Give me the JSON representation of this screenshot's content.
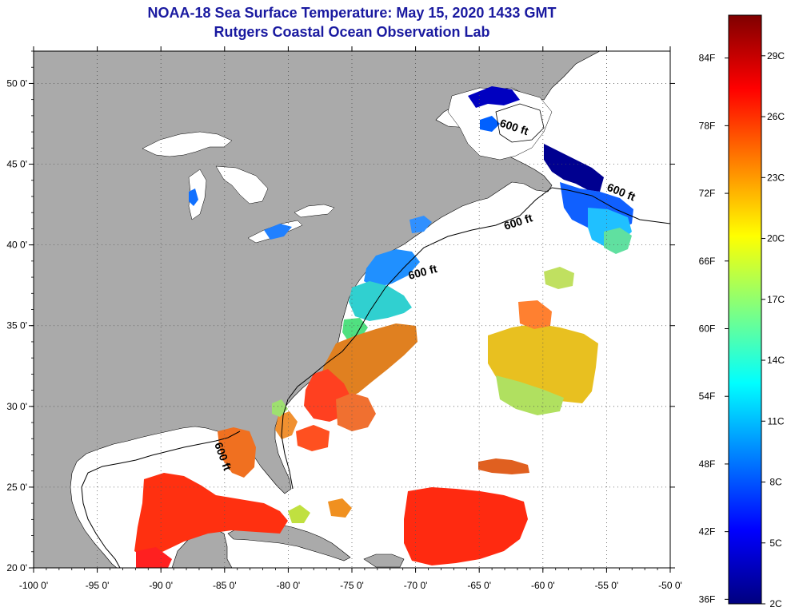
{
  "title_line1": "NOAA-18 Sea Surface Temperature:  May 15, 2020 1433 GMT",
  "title_line2": "Rutgers Coastal Ocean Observation Lab",
  "map": {
    "lon_range": [
      -100,
      -50
    ],
    "lat_range": [
      20,
      52
    ],
    "lat_labels": [
      "50 0'",
      "45 0'",
      "40 0'",
      "35 0'",
      "30 0'",
      "25 0'",
      "20 0'"
    ],
    "lat_values": [
      50,
      45,
      40,
      35,
      30,
      25,
      20
    ],
    "lon_labels": [
      "-100 0'",
      "-95 0'",
      "-90 0'",
      "-85 0'",
      "-80 0'",
      "-75 0'",
      "-70 0'",
      "-65 0'",
      "-60 0'",
      "-55 0'",
      "-50 0'"
    ],
    "lon_values": [
      -100,
      -95,
      -90,
      -85,
      -80,
      -75,
      -70,
      -65,
      -60,
      -55,
      -50
    ],
    "contour_label": "600 ft",
    "colors": {
      "land": "#aaaaaa",
      "water": "#ffffff",
      "grid": "#555555"
    }
  },
  "colorbar": {
    "f_labels": [
      "84F",
      "78F",
      "72F",
      "66F",
      "60F",
      "54F",
      "48F",
      "42F",
      "36F"
    ],
    "f_values": [
      84,
      78,
      72,
      66,
      60,
      54,
      48,
      42,
      36
    ],
    "c_labels": [
      "29C",
      "26C",
      "23C",
      "20C",
      "17C",
      "14C",
      "11C",
      "8C",
      "5C",
      "2C"
    ],
    "c_values": [
      29,
      26,
      23,
      20,
      17,
      14,
      11,
      8,
      5,
      2
    ],
    "range_c": [
      2,
      31
    ],
    "stops": [
      "#00007f",
      "#0000ff",
      "#0080ff",
      "#00ffff",
      "#80ff80",
      "#ffff00",
      "#ff8000",
      "#ff0000",
      "#7f0000"
    ]
  }
}
